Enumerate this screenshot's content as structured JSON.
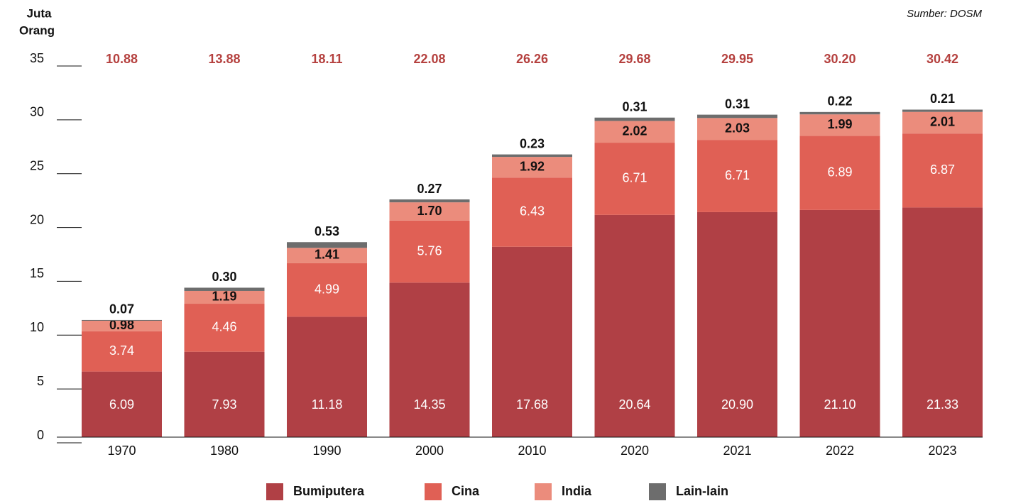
{
  "chart_data": {
    "type": "stacked-bar",
    "y_label": [
      "Juta",
      "Orang"
    ],
    "source": "Sumber: DOSM",
    "categories": [
      "1970",
      "1980",
      "1990",
      "2000",
      "2010",
      "2020",
      "2021",
      "2022",
      "2023"
    ],
    "series": [
      {
        "name": "Bumiputera",
        "color": "#b04045",
        "values": [
          6.09,
          7.93,
          11.18,
          14.35,
          17.68,
          20.64,
          20.9,
          21.1,
          21.33
        ],
        "value_labels": [
          "6.09",
          "7.93",
          "11.18",
          "14.35",
          "17.68",
          "20.64",
          "20.90",
          "21.10",
          "21.33"
        ]
      },
      {
        "name": "Cina",
        "color": "#e06055",
        "values": [
          3.74,
          4.46,
          4.99,
          5.76,
          6.43,
          6.71,
          6.71,
          6.89,
          6.87
        ],
        "value_labels": [
          "3.74",
          "4.46",
          "4.99",
          "5.76",
          "6.43",
          "6.71",
          "6.71",
          "6.89",
          "6.87"
        ]
      },
      {
        "name": "India",
        "color": "#eb8c7c",
        "values": [
          0.98,
          1.19,
          1.41,
          1.7,
          1.92,
          2.02,
          2.03,
          1.99,
          2.01
        ],
        "value_labels": [
          "0.98",
          "1.19",
          "1.41",
          "1.70",
          "1.92",
          "2.02",
          "2.03",
          "1.99",
          "2.01"
        ]
      },
      {
        "name": "Lain-lain",
        "color": "#6d6d6d",
        "values": [
          0.07,
          0.3,
          0.53,
          0.27,
          0.23,
          0.31,
          0.31,
          0.22,
          0.21
        ],
        "value_labels": [
          "0.07",
          "0.30",
          "0.53",
          "0.27",
          "0.23",
          "0.31",
          "0.31",
          "0.22",
          "0.21"
        ]
      }
    ],
    "totals": [
      10.88,
      13.88,
      18.11,
      22.08,
      26.26,
      29.68,
      29.95,
      30.2,
      30.42
    ],
    "total_labels": [
      "10.88",
      "13.88",
      "18.11",
      "22.08",
      "26.26",
      "29.68",
      "29.95",
      "30.20",
      "30.42"
    ],
    "total_color": "#b5413f",
    "ylim": [
      0,
      35
    ],
    "yticks": [
      0,
      5,
      10,
      15,
      20,
      25,
      30,
      35
    ]
  }
}
